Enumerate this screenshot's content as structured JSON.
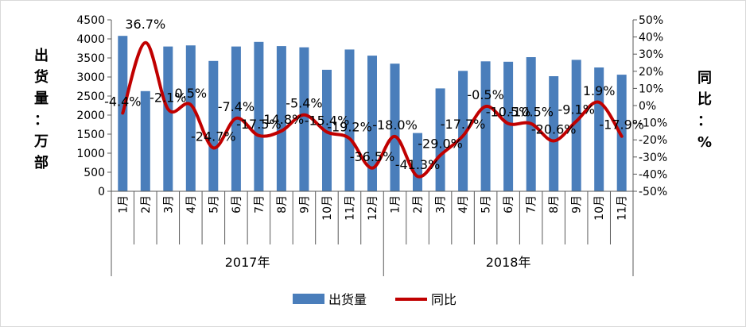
{
  "chart_data": {
    "type": "bar+line",
    "title": "",
    "categories": [
      "1月",
      "2月",
      "3月",
      "4月",
      "5月",
      "6月",
      "7月",
      "8月",
      "9月",
      "10月",
      "11月",
      "12月",
      "1月",
      "2月",
      "3月",
      "4月",
      "5月",
      "6月",
      "7月",
      "8月",
      "9月",
      "10月",
      "11月"
    ],
    "years": [
      {
        "label": "2017年",
        "span": 12
      },
      {
        "label": "2018年",
        "span": 11
      }
    ],
    "series": [
      {
        "name": "出货量",
        "type": "bar",
        "color": "#4a7ebb",
        "axis": "left",
        "values": [
          4080,
          2630,
          3800,
          3830,
          3420,
          3800,
          3920,
          3810,
          3780,
          3190,
          3720,
          3560,
          3350,
          1530,
          2700,
          3160,
          3410,
          3400,
          3520,
          3020,
          3450,
          3250,
          3060
        ]
      },
      {
        "name": "同比",
        "type": "line",
        "color": "#c00000",
        "axis": "right",
        "values": [
          -4.4,
          36.7,
          -2.1,
          0.5,
          -24.7,
          -7.4,
          -17.5,
          -14.8,
          -5.4,
          -15.4,
          -19.2,
          -36.5,
          -18.0,
          -41.3,
          -29.0,
          -17.7,
          -0.5,
          -10.5,
          -10.5,
          -20.6,
          -9.1,
          1.9,
          -17.9
        ],
        "labels": [
          "-4.4%",
          "36.7%",
          "-2.1%",
          "0.5%",
          "-24.7%",
          "-7.4%",
          "-17.5%",
          "-14.8%",
          "-5.4%",
          "-15.4%",
          "-19.2%",
          "-36.5%",
          "-18.0%",
          "-41.3%",
          "-29.0%",
          "-17.7%",
          "-0.5%",
          "-10.5%",
          "-10.5%",
          "-20.6%",
          "-9.1%",
          "1.9%",
          "-17.9%"
        ]
      }
    ],
    "y_left": {
      "label": [
        "出",
        "货",
        "量",
        "：",
        "万",
        "部"
      ],
      "ylim": [
        0,
        4500
      ],
      "ticks": [
        "0",
        "500",
        "1000",
        "1500",
        "2000",
        "2500",
        "3000",
        "3500",
        "4000",
        "4500"
      ]
    },
    "y_right": {
      "label": [
        "同",
        "比",
        "：",
        "%"
      ],
      "ylim": [
        -50,
        50
      ],
      "ticks": [
        "-50%",
        "-40%",
        "-30%",
        "-20%",
        "-10%",
        "0%",
        "10%",
        "20%",
        "30%",
        "40%",
        "50%"
      ]
    },
    "legend": {
      "position": "bottom",
      "items": [
        {
          "label": "出货量",
          "color": "#4a7ebb",
          "kind": "bar"
        },
        {
          "label": "同比",
          "color": "#c00000",
          "kind": "line"
        }
      ]
    },
    "grid": false
  }
}
